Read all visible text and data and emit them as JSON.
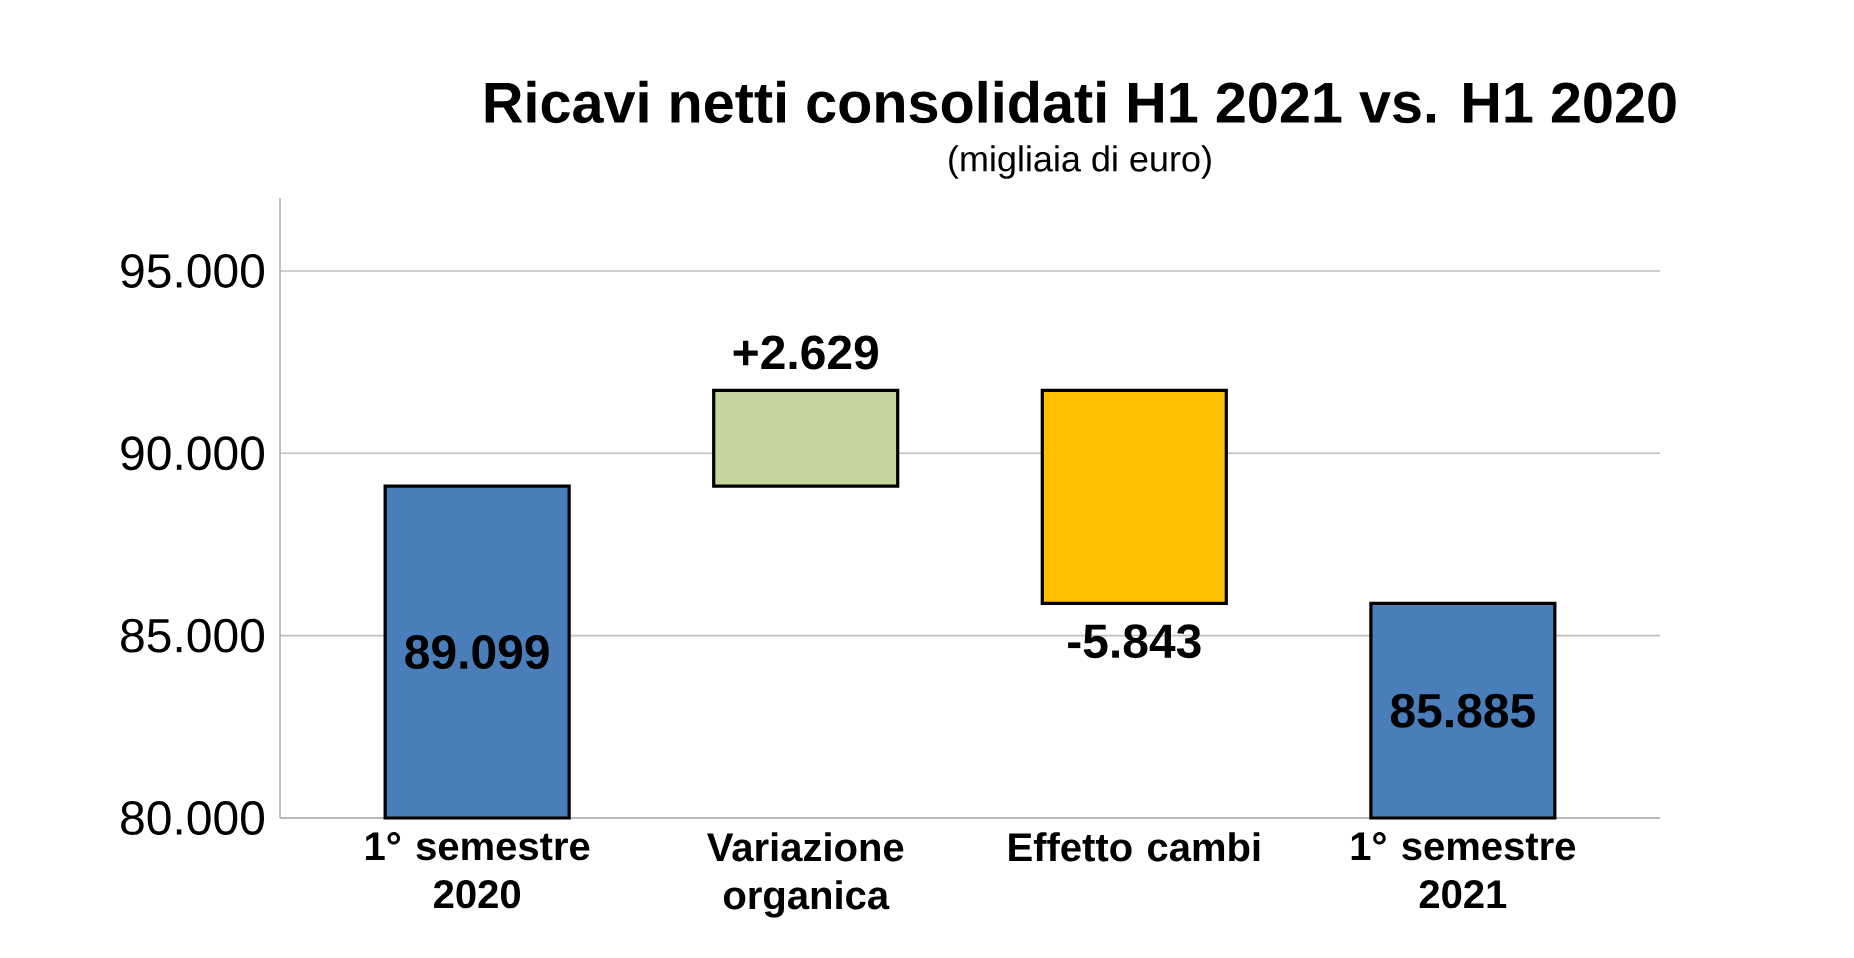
{
  "chart_data": {
    "type": "bar",
    "title": "Ricavi netti consolidati H1 2021 vs. H1 2020",
    "subtitle": "(migliaia di euro)",
    "categories": [
      "1° semestre 2020",
      "Variazione organica",
      "Effetto cambi",
      "1° semestre 2021"
    ],
    "values": [
      89099,
      2629,
      -5843,
      85885
    ],
    "base": [
      null,
      89099,
      91728,
      null
    ],
    "value_labels": [
      "89.099",
      "+2.629",
      "-5.843",
      "85.885"
    ],
    "colors": [
      "#4a7ebb",
      "#c3d69b",
      "#ffc000",
      "#4a7ebb"
    ],
    "ylim": [
      80000,
      97000
    ],
    "yticks": [
      {
        "value": 80000,
        "label": "80.000"
      },
      {
        "value": 85000,
        "label": "85.000"
      },
      {
        "value": 90000,
        "label": "90.000"
      },
      {
        "value": 95000,
        "label": "95.000"
      }
    ],
    "grid": "y"
  }
}
